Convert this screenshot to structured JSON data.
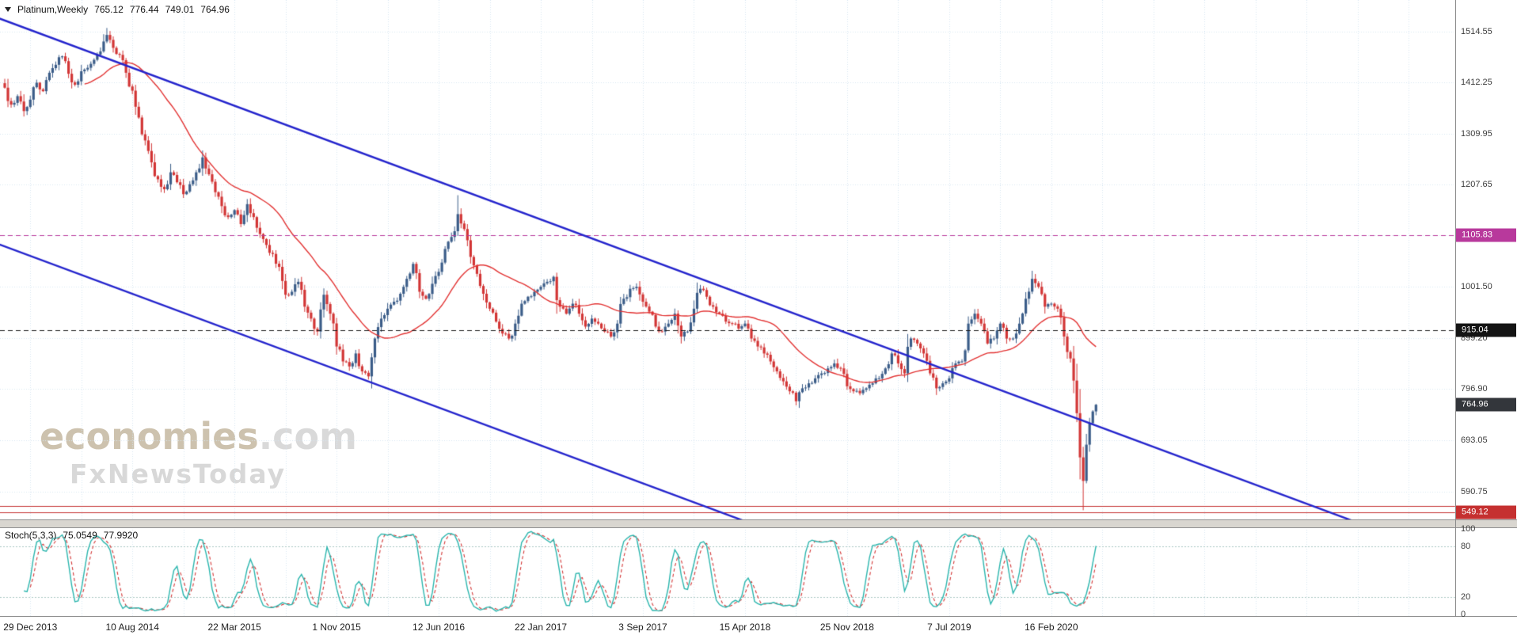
{
  "header": {
    "symbol": "Platinum,Weekly",
    "open": "765.12",
    "high": "776.44",
    "low": "749.01",
    "close": "764.96"
  },
  "indicator_header": {
    "name": "Stoch(5,3,3)",
    "main_value": "75.0549",
    "signal_value": "77.9920"
  },
  "watermark": {
    "brand": "economies",
    "brand_suffix": ".com",
    "subbrand": "FxNewsToday"
  },
  "colors": {
    "grid": "#d7e6f0",
    "candle_up": "#3a5c88",
    "candle_down": "#d23535",
    "ma": "#e23333",
    "trend": "#2424cc",
    "stoch_k": "#2ab5ad",
    "stoch_d": "#d23535",
    "stoch_level": "#aac6c2",
    "badge_purple": "#b8399c",
    "badge_black": "#141414",
    "badge_last": "#33363b",
    "badge_red": "#c53030"
  },
  "y_axis": {
    "ticks": [
      {
        "label": "1514.55",
        "price": 1514.55
      },
      {
        "label": "1412.25",
        "price": 1412.25
      },
      {
        "label": "1309.95",
        "price": 1309.95
      },
      {
        "label": "1207.65",
        "price": 1207.65
      },
      {
        "label": "1001.50",
        "price": 1001.5
      },
      {
        "label": "899.20",
        "price": 899.2
      },
      {
        "label": "796.90",
        "price": 796.9
      },
      {
        "label": "693.05",
        "price": 693.05
      },
      {
        "label": "590.75",
        "price": 590.75
      }
    ],
    "badges": [
      {
        "label": "1105.83",
        "price": 1105.83,
        "color": "#b8399c",
        "name": "purple-level-badge"
      },
      {
        "label": "915.04",
        "price": 915.04,
        "color": "#141414",
        "name": "black-level-badge"
      },
      {
        "label": "764.96",
        "price": 764.96,
        "color": "#33363b",
        "name": "last-price-badge"
      },
      {
        "label": "549.12",
        "price": 549.12,
        "color": "#c53030",
        "name": "red-level-badge"
      }
    ]
  },
  "stoch_axis": {
    "ticks": [
      {
        "label": "100",
        "value": 100
      },
      {
        "label": "80",
        "value": 80
      },
      {
        "label": "20",
        "value": 20
      },
      {
        "label": "0",
        "value": 0
      }
    ]
  },
  "x_axis": {
    "labels": [
      {
        "label": "29 Dec 2013",
        "week": 0
      },
      {
        "label": "10 Aug 2014",
        "week": 32
      },
      {
        "label": "22 Mar 2015",
        "week": 64
      },
      {
        "label": "1 Nov 2015",
        "week": 96
      },
      {
        "label": "12 Jun 2016",
        "week": 128
      },
      {
        "label": "22 Jan 2017",
        "week": 160
      },
      {
        "label": "3 Sep 2017",
        "week": 192
      },
      {
        "label": "15 Apr 2018",
        "week": 224
      },
      {
        "label": "25 Nov 2018",
        "week": 256
      },
      {
        "label": "7 Jul 2019",
        "week": 288
      },
      {
        "label": "16 Feb 2020",
        "week": 320
      }
    ]
  },
  "chart_data": {
    "type": "candlestick",
    "symbol": "Platinum",
    "timeframe": "Weekly",
    "last_candle": {
      "open": 765.12,
      "high": 776.44,
      "low": 749.01,
      "close": 764.96
    },
    "first_week": -8,
    "week_step": 2,
    "closes": [
      1402,
      1368,
      1385,
      1355,
      1378,
      1412,
      1395,
      1432,
      1448,
      1465,
      1430,
      1408,
      1435,
      1442,
      1458,
      1475,
      1508,
      1482,
      1468,
      1432,
      1396,
      1342,
      1296,
      1252,
      1218,
      1198,
      1232,
      1212,
      1188,
      1208,
      1232,
      1262,
      1228,
      1192,
      1164,
      1142,
      1156,
      1128,
      1168,
      1142,
      1108,
      1086,
      1068,
      1042,
      986,
      992,
      1012,
      962,
      938,
      912,
      986,
      948,
      882,
      852,
      842,
      868,
      832,
      822,
      898,
      938,
      958,
      972,
      988,
      1018,
      1048,
      992,
      978,
      1008,
      1032,
      1078,
      1102,
      1148,
      1118,
      1062,
      1028,
      988,
      958,
      932,
      908,
      898,
      928,
      968,
      982,
      992,
      1002,
      1012,
      1022,
      962,
      948,
      968,
      948,
      922,
      938,
      928,
      912,
      902,
      928,
      978,
      998,
      1002,
      972,
      952,
      922,
      912,
      928,
      948,
      902,
      912,
      958,
      998,
      982,
      962,
      948,
      932,
      928,
      918,
      928,
      898,
      882,
      868,
      852,
      832,
      812,
      792,
      772,
      798,
      808,
      818,
      828,
      838,
      848,
      838,
      802,
      792,
      788,
      798,
      808,
      818,
      838,
      868,
      848,
      828,
      898,
      888,
      868,
      828,
      798,
      808,
      818,
      848,
      852,
      928,
      948,
      928,
      888,
      898,
      928,
      898,
      898,
      928,
      978,
      1018,
      1002,
      962,
      968,
      958,
      902,
      858,
      748,
      612,
      728,
      765
    ],
    "wick_overrides": {
      "highs": [
        {
          "week": 24,
          "high": 1522
        },
        {
          "week": 134,
          "high": 1186
        }
      ],
      "lows": [
        {
          "week": 330,
          "low": 553
        }
      ]
    },
    "moving_average": {
      "type": "SMA",
      "period": 26,
      "color": "#e23333"
    },
    "trendlines": [
      {
        "name": "channel-upper",
        "week1": -10,
        "price1": 1541.8,
        "week2": 424,
        "price2": 509.0,
        "color": "#2424cc"
      },
      {
        "name": "channel-lower",
        "week1": -10,
        "price1": 1087.8,
        "week2": 240,
        "price2": 492.8,
        "color": "#2424cc"
      }
    ],
    "horizontal_levels": [
      {
        "price": 1105.83,
        "color": "#b8399c",
        "style": "dashed"
      },
      {
        "price": 915.04,
        "color": "#1c1c1c",
        "style": "dashed"
      },
      {
        "price": 561.5,
        "color": "#c53030",
        "style": "solid"
      },
      {
        "price": 549.12,
        "color": "#c53030",
        "style": "solid"
      }
    ],
    "stochastic": {
      "k": 5,
      "slowing": 3,
      "d": 3,
      "last_k": 75.0549,
      "last_d": 77.992,
      "upper_level": 80,
      "lower_level": 20,
      "range": [
        0,
        100
      ],
      "k_color": "#2ab5ad",
      "d_color": "#d23535"
    }
  }
}
